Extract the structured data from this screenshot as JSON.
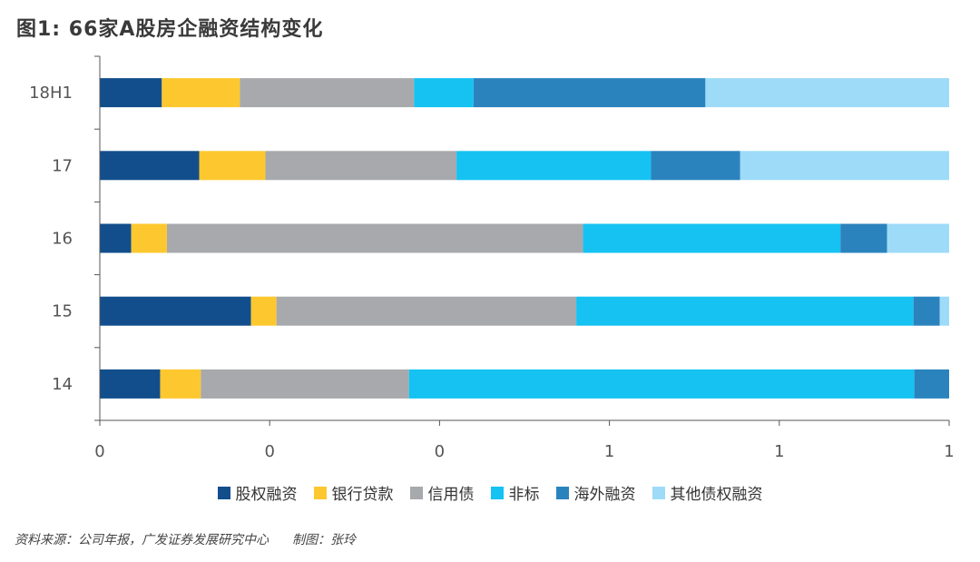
{
  "title": "图1: 66家A股房企融资结构变化",
  "source_text": "资料来源：公司年报，广发证券发展研究中心",
  "maker_text": "制图：张玲",
  "chart_data": {
    "type": "bar",
    "orientation": "horizontal",
    "stacked": true,
    "categories": [
      "18H1",
      "17",
      "16",
      "15",
      "14"
    ],
    "xtick_labels": [
      "0",
      "0",
      "0",
      "1",
      "1",
      "1"
    ],
    "xlim": [
      0,
      1
    ],
    "legend_position": "bottom",
    "series": [
      {
        "name": "股权融资",
        "color": "#124e8c",
        "values": [
          0.073,
          0.117,
          0.037,
          0.178,
          0.071
        ]
      },
      {
        "name": "银行贷款",
        "color": "#fdc82f",
        "values": [
          0.092,
          0.078,
          0.042,
          0.03,
          0.048
        ]
      },
      {
        "name": "信用债",
        "color": "#a7a9ac",
        "values": [
          0.205,
          0.225,
          0.49,
          0.353,
          0.245
        ]
      },
      {
        "name": "非标",
        "color": "#15c2f2",
        "values": [
          0.07,
          0.229,
          0.303,
          0.397,
          0.595
        ]
      },
      {
        "name": "海外融资",
        "color": "#2b83bd",
        "values": [
          0.273,
          0.105,
          0.055,
          0.031,
          0.041
        ]
      },
      {
        "name": "其他债权融资",
        "color": "#9ddbf8",
        "values": [
          0.287,
          0.246,
          0.073,
          0.011,
          0.0
        ]
      }
    ]
  }
}
